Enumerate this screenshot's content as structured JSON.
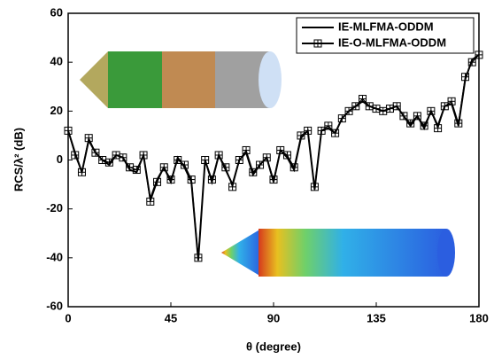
{
  "chart_data": {
    "type": "line",
    "x_label": "θ (degree)",
    "y_label": "RCS/λ² (dB)",
    "x": [
      0,
      3,
      6,
      9,
      12,
      15,
      18,
      21,
      24,
      27,
      30,
      33,
      36,
      39,
      42,
      45,
      48,
      51,
      54,
      57,
      60,
      63,
      66,
      69,
      72,
      75,
      78,
      81,
      84,
      87,
      90,
      93,
      96,
      99,
      102,
      105,
      108,
      111,
      114,
      117,
      120,
      123,
      126,
      129,
      132,
      135,
      138,
      141,
      144,
      147,
      150,
      153,
      156,
      159,
      162,
      165,
      168,
      171,
      174,
      177,
      180
    ],
    "series": [
      {
        "name": "IE-MLFMA-ODDM",
        "color": "#000000",
        "marker": false,
        "values": [
          12,
          3,
          -5,
          8,
          3,
          0,
          -2,
          2,
          1,
          -4,
          -5,
          2,
          -16,
          -8,
          -3,
          -9,
          1,
          -3,
          -9,
          -41,
          0,
          -9,
          2,
          -4,
          -10,
          0,
          3,
          -6,
          -2,
          1,
          -9,
          4,
          1,
          -4,
          9,
          12,
          -12,
          12,
          13,
          11,
          17,
          20,
          22,
          24,
          22,
          21,
          20,
          21,
          22,
          18,
          14,
          18,
          13,
          20,
          14,
          22,
          23,
          14,
          33,
          41,
          43
        ]
      },
      {
        "name": "IE-O-MLFMA-ODDM",
        "color": "#000000",
        "marker": true,
        "values": [
          12,
          2,
          -5,
          9,
          3,
          0,
          -1,
          2,
          1,
          -3,
          -4,
          2,
          -17,
          -9,
          -3,
          -8,
          0,
          -2,
          -8,
          -40,
          0,
          -8,
          2,
          -3,
          -11,
          0,
          4,
          -5,
          -2,
          1,
          -8,
          4,
          2,
          -3,
          10,
          12,
          -11,
          12,
          14,
          11,
          17,
          20,
          22,
          25,
          22,
          21,
          20,
          21,
          22,
          18,
          15,
          18,
          14,
          20,
          13,
          22,
          24,
          15,
          34,
          40,
          43
        ]
      }
    ],
    "xlim": [
      0,
      180
    ],
    "xticks": [
      0,
      45,
      90,
      135,
      180
    ],
    "ylim": [
      -60,
      60
    ],
    "yticks": [
      -60,
      -40,
      -20,
      0,
      20,
      40,
      60
    ],
    "legend": "upper right",
    "grid": false
  }
}
